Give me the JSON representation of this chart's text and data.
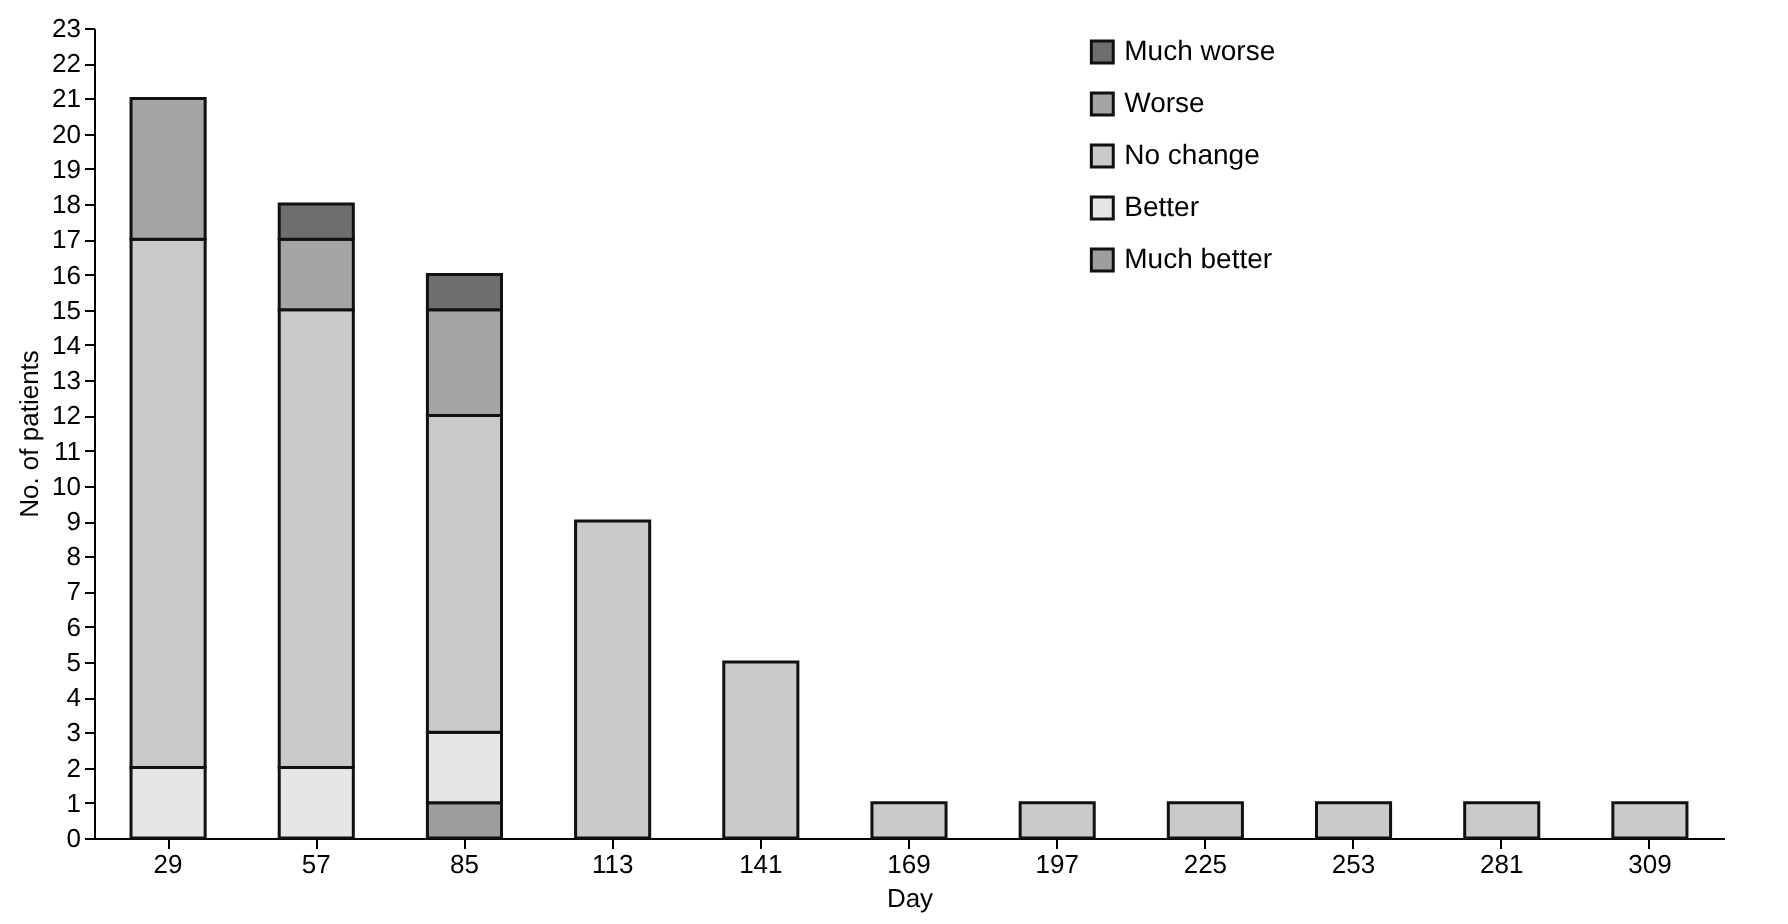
{
  "chart_data": {
    "type": "bar",
    "stacked": true,
    "xlabel": "Day",
    "ylabel": "No. of patients",
    "categories": [
      "29",
      "57",
      "85",
      "113",
      "141",
      "169",
      "197",
      "225",
      "253",
      "281",
      "309"
    ],
    "series": [
      {
        "name": "Much better",
        "color": "#9c9ea0",
        "values": [
          null,
          null,
          1,
          null,
          null,
          null,
          null,
          null,
          null,
          null,
          null
        ]
      },
      {
        "name": "Better",
        "color": "#e5e6e7",
        "values": [
          2,
          2,
          2,
          null,
          null,
          null,
          null,
          null,
          null,
          null,
          null
        ]
      },
      {
        "name": "No change",
        "color": "#c9cacb",
        "values": [
          15,
          13,
          9,
          9,
          5,
          1,
          1,
          1,
          1,
          1,
          1
        ]
      },
      {
        "name": "Worse",
        "color": "#a3a5a7",
        "values": [
          4,
          2,
          3,
          null,
          null,
          null,
          null,
          null,
          null,
          null,
          null
        ]
      },
      {
        "name": "Much worse",
        "color": "#6e6e6e",
        "values": [
          null,
          1,
          1,
          null,
          null,
          null,
          null,
          null,
          null,
          null,
          null
        ]
      }
    ],
    "ylim": [
      0,
      23
    ],
    "yticks": [
      0,
      1,
      2,
      3,
      4,
      5,
      6,
      7,
      8,
      9,
      10,
      11,
      12,
      13,
      14,
      15,
      16,
      17,
      18,
      19,
      20,
      21,
      22,
      23
    ],
    "grid": false,
    "legend": "top right"
  }
}
